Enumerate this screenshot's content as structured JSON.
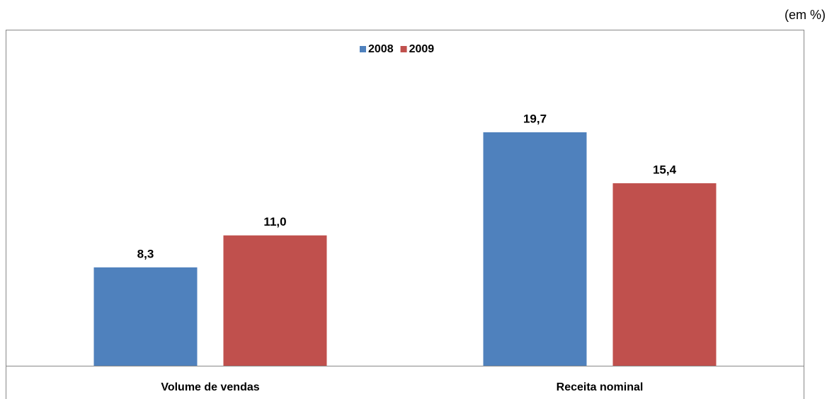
{
  "chart_data": {
    "type": "bar",
    "annotation": "(em %)",
    "categories": [
      "Volume de vendas",
      "Receita nominal"
    ],
    "series": [
      {
        "name": "2008",
        "color": "#4f81bd",
        "values": [
          8.3,
          19.7
        ],
        "value_labels": [
          "8,3",
          "19,7"
        ]
      },
      {
        "name": "2009",
        "color": "#c0504d",
        "values": [
          11.0,
          15.4
        ],
        "value_labels": [
          "11,0",
          "15,4"
        ]
      }
    ],
    "legend": "top"
  }
}
